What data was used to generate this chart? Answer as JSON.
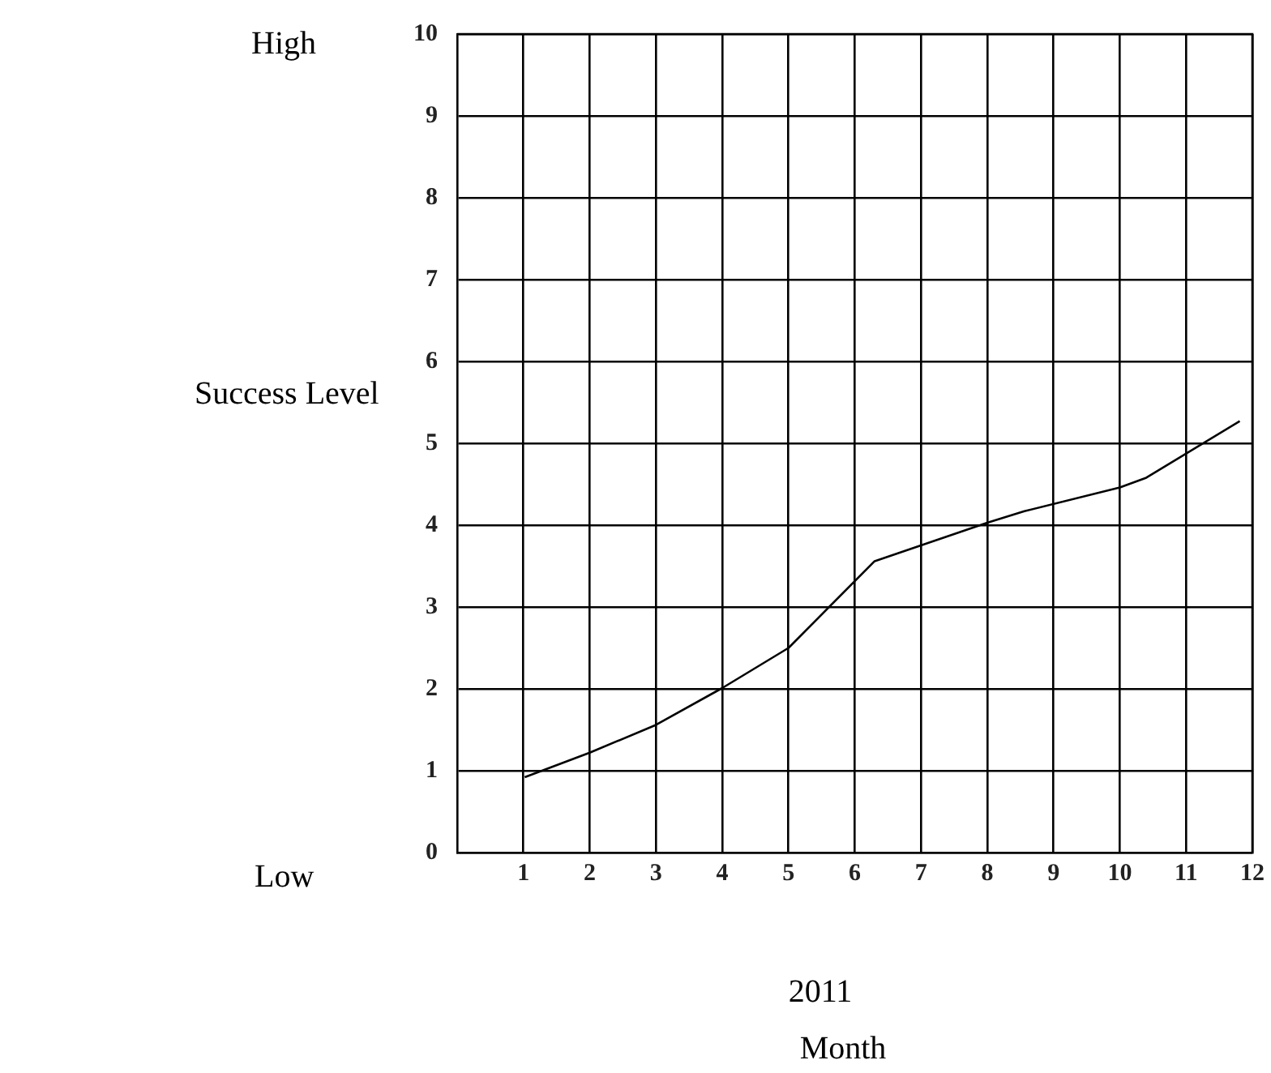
{
  "chart_data": {
    "type": "line",
    "xlabel": "Month",
    "ylabel": "Success Level",
    "annotations": [
      "High",
      "Low",
      "2011"
    ],
    "xlim": [
      0,
      12
    ],
    "xticks": [
      1,
      2,
      3,
      4,
      5,
      6,
      7,
      8,
      9,
      10,
      11,
      12
    ],
    "ylim": [
      0,
      10
    ],
    "yticks": [
      0,
      1,
      2,
      3,
      4,
      5,
      6,
      7,
      8,
      9,
      10
    ],
    "grid": true,
    "marker": "none",
    "line_style": "solid",
    "series": [
      {
        "color": "#000000",
        "x": [
          1.02,
          2,
          3,
          4,
          5,
          6.3,
          8,
          8.56,
          10,
          10.4,
          11.81
        ],
        "values": [
          0.92,
          1.22,
          1.56,
          2.01,
          2.5,
          3.56,
          4.03,
          4.17,
          4.46,
          4.58,
          5.27
        ]
      }
    ]
  }
}
